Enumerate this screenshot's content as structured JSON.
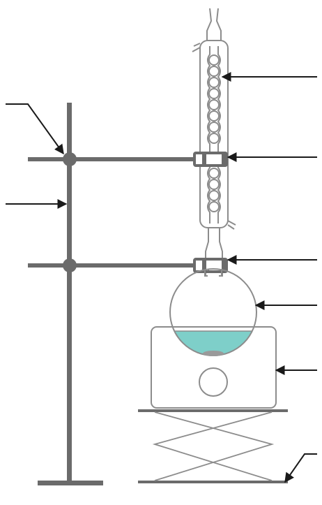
{
  "diagram": {
    "kind": "reflux-apparatus",
    "components": [
      "retort-stand-rod",
      "clamp-boss-upper",
      "clamp-boss-lower",
      "clamp-arm-upper",
      "clamp-arm-lower",
      "stand-base",
      "allihn-condenser",
      "condenser-clamp",
      "flask-clamp",
      "round-bottom-flask",
      "flask-liquid",
      "stir-bar",
      "hotplate-stirrer",
      "hotplate-dial",
      "lab-jack"
    ],
    "label_arrows": [
      "boss-head-arrow",
      "stand-rod-arrow",
      "condenser-arrow",
      "condenser-clamp-arrow",
      "flask-clamp-arrow",
      "flask-arrow",
      "hotplate-arrow",
      "lab-jack-arrow"
    ]
  },
  "colors": {
    "stand": "#6b6b6b",
    "outline": "#8c8c8c",
    "liquid": "#7ecfc9",
    "stir_bar": "#9a9a9a",
    "arrow": "#1a1a1a",
    "background": "#ffffff"
  }
}
